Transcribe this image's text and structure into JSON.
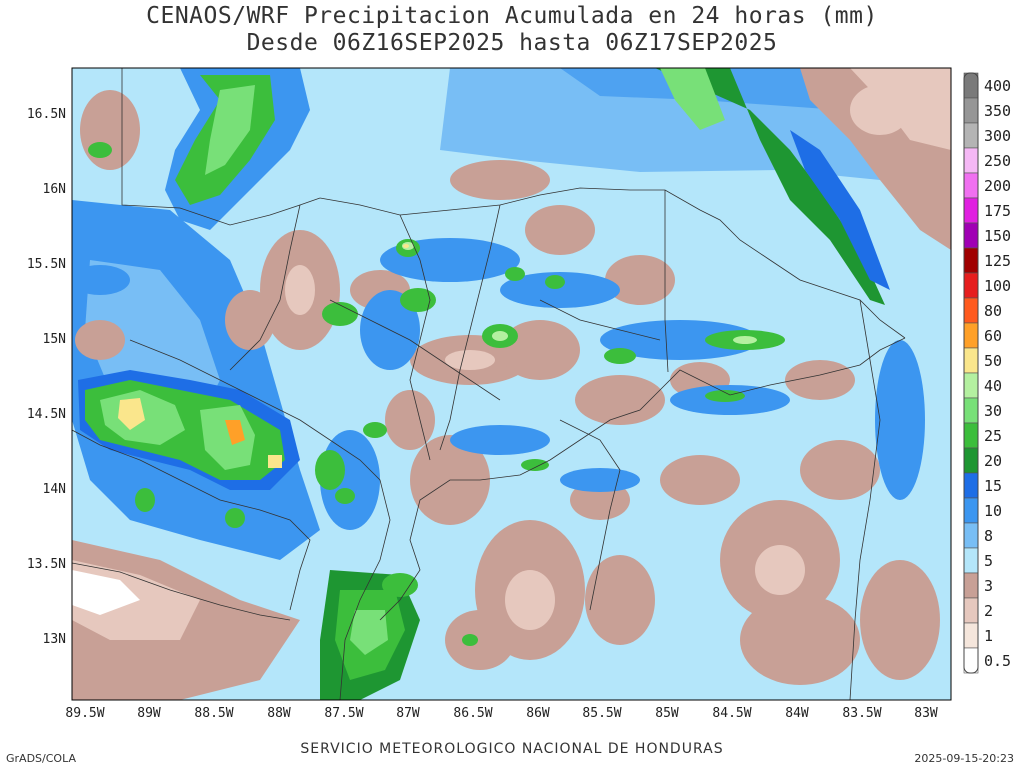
{
  "title": {
    "line1": "CENAOS/WRF Precipitacion Acumulada en 24 horas (mm)",
    "line2": "Desde 06Z16SEP2025 hasta 06Z17SEP2025"
  },
  "map": {
    "lon_labels": [
      "89.5W",
      "89W",
      "88.5W",
      "88W",
      "87.5W",
      "87W",
      "86.5W",
      "86W",
      "85.5W",
      "85W",
      "84.5W",
      "84W",
      "83.5W",
      "83W"
    ],
    "lat_labels": [
      "16.5N",
      "16N",
      "15.5N",
      "15N",
      "14.5N",
      "14N",
      "13.5N",
      "13N"
    ]
  },
  "legend": {
    "items": [
      {
        "label": "400",
        "color": "#7a7a7a"
      },
      {
        "label": "350",
        "color": "#969696"
      },
      {
        "label": "300",
        "color": "#b4b4b4"
      },
      {
        "label": "250",
        "color": "#f5b8f5"
      },
      {
        "label": "200",
        "color": "#f070f0"
      },
      {
        "label": "175",
        "color": "#e020e0"
      },
      {
        "label": "150",
        "color": "#a000b4"
      },
      {
        "label": "125",
        "color": "#a00000"
      },
      {
        "label": "100",
        "color": "#e61e1e"
      },
      {
        "label": "80",
        "color": "#ff5a1e"
      },
      {
        "label": "60",
        "color": "#ffa028"
      },
      {
        "label": "50",
        "color": "#fae68c"
      },
      {
        "label": "40",
        "color": "#b4f0a0"
      },
      {
        "label": "30",
        "color": "#78e078"
      },
      {
        "label": "25",
        "color": "#3cbe3c"
      },
      {
        "label": "20",
        "color": "#1e9632"
      },
      {
        "label": "15",
        "color": "#1e6ee6"
      },
      {
        "label": "10",
        "color": "#3c96f0"
      },
      {
        "label": "8",
        "color": "#78bef5"
      },
      {
        "label": "5",
        "color": "#b4e6fa"
      },
      {
        "label": "3",
        "color": "#c8a096"
      },
      {
        "label": "2",
        "color": "#e6c8be"
      },
      {
        "label": "1",
        "color": "#f5e6dc"
      },
      {
        "label": "0.5",
        "color": "#ffffff"
      }
    ]
  },
  "footer": {
    "left": "GrADS/COLA",
    "center": "SERVICIO METEOROLOGICO NACIONAL DE HONDURAS",
    "right": "2025-09-15-20:23"
  }
}
